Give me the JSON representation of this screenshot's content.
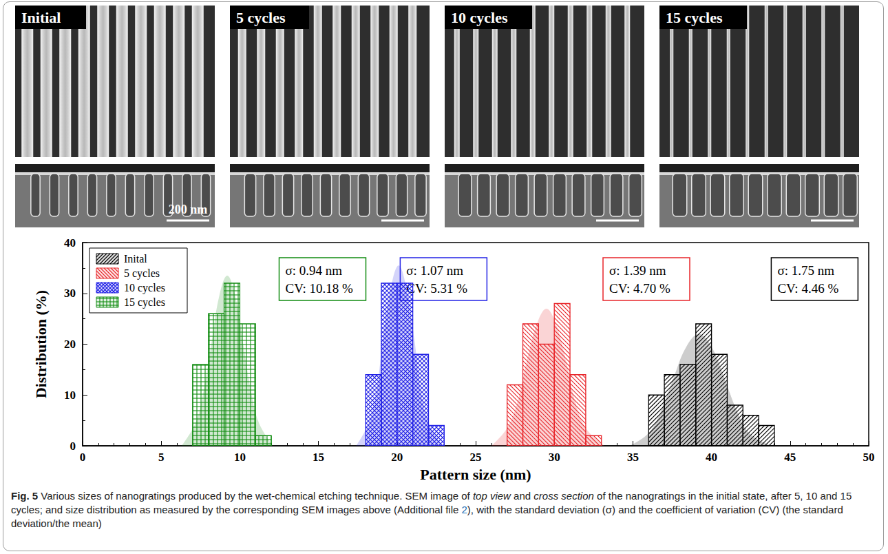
{
  "figure": {
    "panels": [
      {
        "label": "Initial",
        "scale_bar": "200 nm"
      },
      {
        "label": "5 cycles"
      },
      {
        "label": "10 cycles"
      },
      {
        "label": "15 cycles"
      }
    ],
    "caption": {
      "label": "Fig. 5",
      "runs": [
        {
          "text": " Various sizes of nanogratings produced by the wet-chemical etching technique. SEM image of "
        },
        {
          "text": "top view",
          "style": "italic"
        },
        {
          "text": " and "
        },
        {
          "text": "cross section",
          "style": "italic"
        },
        {
          "text": " of the nanogratings in the initial state, after 5, 10 and 15 cycles; and size distribution as measured by the corresponding SEM images above (Additional file "
        },
        {
          "text": "2",
          "style": "link"
        },
        {
          "text": "), with the standard deviation (σ) and the coefficient of variation (CV) (the standard deviation/the mean)"
        }
      ]
    }
  },
  "chart_data": {
    "type": "histogram",
    "x_label": "Pattern size (nm)",
    "y_label": "Distribution (%)",
    "xlim": [
      0,
      50
    ],
    "xticks": [
      0,
      5,
      10,
      15,
      20,
      25,
      30,
      35,
      40,
      45,
      50
    ],
    "ylim": [
      0,
      40
    ],
    "yticks": [
      0,
      10,
      20,
      30,
      40
    ],
    "grid": false,
    "legend": "upper left",
    "series": [
      {
        "name": "Inital",
        "color": "#000000",
        "bins": [
          36,
          37,
          38,
          39,
          40,
          41,
          42,
          43,
          44
        ],
        "values": [
          10,
          14,
          16,
          24,
          18,
          8,
          6,
          4
        ],
        "fit_x": [
          34.8,
          36,
          36.8,
          37.6,
          38.4,
          39.2,
          40,
          40.8,
          41.6,
          42.4,
          43.8
        ],
        "fit_y": [
          0,
          2.5,
          7,
          13.5,
          19.5,
          22,
          19.5,
          13.5,
          7,
          2.5,
          0
        ],
        "annotation": [
          "σ: 1.75 nm",
          "CV: 4.46 %"
        ]
      },
      {
        "name": "5 cycles",
        "color": "#e8262b",
        "bins": [
          27,
          28,
          29,
          30,
          31,
          32,
          33
        ],
        "values": [
          12,
          24,
          20,
          28,
          14,
          2
        ],
        "fit_x": [
          26,
          27,
          27.7,
          28.2,
          28.9,
          29.5,
          30.1,
          30.8,
          31.3,
          32,
          33.2
        ],
        "fit_y": [
          0,
          3.5,
          9,
          16,
          24,
          27,
          24,
          16,
          9,
          3.5,
          0
        ],
        "annotation": [
          "σ: 1.39 nm",
          "CV: 4.70 %"
        ]
      },
      {
        "name": "10 cycles",
        "color": "#2323e6",
        "bins": [
          18,
          19,
          20,
          21,
          22,
          23
        ],
        "values": [
          14,
          32,
          32,
          18,
          4
        ],
        "fit_x": [
          17.4,
          18.2,
          18.7,
          19.1,
          19.6,
          20.1,
          20.6,
          21.1,
          21.5,
          22,
          22.9
        ],
        "fit_y": [
          0,
          4.5,
          11,
          21,
          31,
          35.5,
          31,
          21,
          11,
          4.5,
          0
        ],
        "annotation": [
          "σ: 1.07 nm",
          "CV: 5.31 %"
        ]
      },
      {
        "name": "15 cycles",
        "color": "#128c12",
        "bins": [
          7,
          8,
          9,
          10,
          11,
          12
        ],
        "values": [
          16,
          26,
          32,
          24,
          2
        ],
        "fit_x": [
          6.3,
          7.2,
          7.7,
          8.2,
          8.7,
          9.2,
          9.7,
          10.2,
          10.7,
          11.2,
          12.1
        ],
        "fit_y": [
          0,
          4.6,
          10.9,
          20.3,
          29.6,
          33.5,
          29.6,
          20.3,
          10.9,
          4.6,
          0
        ],
        "annotation": [
          "σ: 0.94 nm",
          "CV: 10.18 %"
        ]
      }
    ]
  }
}
